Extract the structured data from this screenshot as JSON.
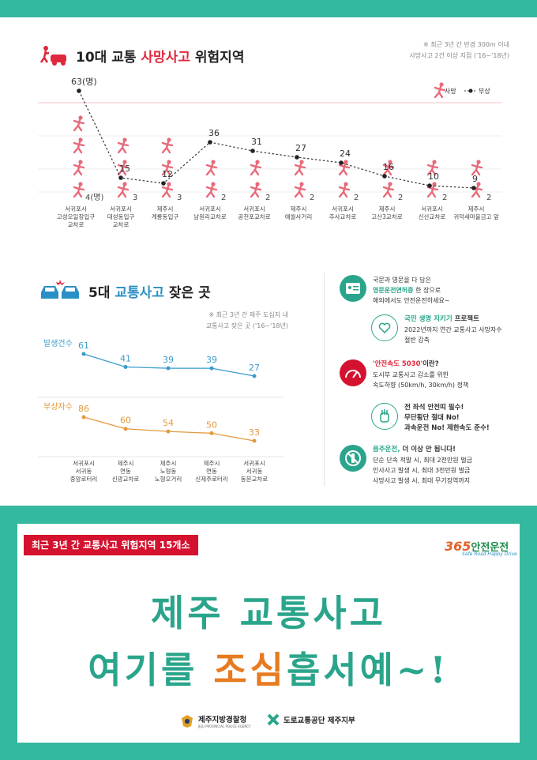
{
  "section1": {
    "title_prefix": "10대 교통 ",
    "title_highlight": "사망사고",
    "title_suffix": " 위험지역",
    "note_line1": "※ 최근 3년 간 반경 300m 이내",
    "note_line2": "사망사고 2건 이상 지점 ('16~'18년)",
    "legend_death": "사망",
    "legend_injury": "부상"
  },
  "chart_data": [
    {
      "type": "line",
      "categories": [
        [
          "서귀포시",
          "고성오일장입구",
          "교차로"
        ],
        [
          "서귀포시",
          "대성동입구",
          "교차로"
        ],
        [
          "제주시",
          "계룡동입구"
        ],
        [
          "서귀포시",
          "남원리교차로"
        ],
        [
          "서귀포시",
          "공천포교차로"
        ],
        [
          "제주시",
          "애월사거리"
        ],
        [
          "서귀포시",
          "추사교차로"
        ],
        [
          "제주시",
          "고산3교차로"
        ],
        [
          "서귀포시",
          "신산교차로"
        ],
        [
          "제주시",
          "귀덕새마을금고 앞"
        ]
      ],
      "series": [
        {
          "name": "부상",
          "values": [
            63,
            15,
            12,
            36,
            31,
            27,
            24,
            16,
            10,
            9
          ],
          "labels": [
            "63(명)",
            "15",
            "12",
            "36",
            "31",
            "27",
            "24",
            "16",
            "10",
            "9"
          ]
        },
        {
          "name": "사망",
          "values": [
            4,
            3,
            3,
            2,
            2,
            2,
            2,
            2,
            2,
            2
          ],
          "labels": [
            "4(명)",
            "3",
            "3",
            "2",
            "2",
            "2",
            "2",
            "2",
            "2",
            "2"
          ]
        }
      ],
      "ylim": [
        0,
        70
      ],
      "grid": true,
      "legend": "top-right"
    },
    {
      "type": "line",
      "categories": [
        [
          "서귀포시",
          "서귀동",
          "중앙로터리"
        ],
        [
          "제주시",
          "연동",
          "신광교차로"
        ],
        [
          "제주시",
          "노형동",
          "노형오거리"
        ],
        [
          "제주시",
          "연동",
          "신제주로터리"
        ],
        [
          "서귀포시",
          "서귀동",
          "동문교차로"
        ]
      ],
      "series": [
        {
          "name": "발생건수",
          "values": [
            61,
            41,
            39,
            39,
            27
          ],
          "color": "#3a9ccc"
        },
        {
          "name": "부상자수",
          "values": [
            86,
            60,
            54,
            50,
            33
          ],
          "color": "#e39a3c"
        }
      ]
    }
  ],
  "section2": {
    "title_prefix": "5대 ",
    "title_highlight": "교통사고",
    "title_suffix": " 잦은 곳",
    "note_line1": "※ 최근 3년 간 제주 도심지 내",
    "note_line2": "교통사고 잦은 곳 ('16~'18년)"
  },
  "tips": [
    {
      "icon": "license-card-icon",
      "line1": "국문과 영문을 다 담은",
      "line2_hl": "영문운전면허증",
      "line2_rest": " 한 장으로",
      "line3": "해외에서도 안전운전하세요~"
    },
    {
      "icon": "heart-sun-icon",
      "line1_hl": "국민 생명 지키기",
      "line1_rest": " 프로젝트",
      "line2": "2022년까지 연간 교통사고 사망자수",
      "line3": "절반 감축"
    },
    {
      "icon": "speedometer-icon",
      "line1_hl": "'안전속도 5030'",
      "line1_rest": "이란?",
      "line2": "도시부 교통사고 감소를 위한",
      "line3": "속도하향 (50km/h, 30km/h) 정책"
    },
    {
      "icon": "hand-stop-icon",
      "line1": "전 좌석 안전띠 필수!",
      "line2": "무단횡단 절대 No!",
      "line3": "과속운전 No! 제한속도 준수!"
    },
    {
      "icon": "no-drinking-icon",
      "line1_hl": "음주운전,",
      "line1_rest": " 더 이상 안 됩니다!",
      "line2": "단순 단속 적발 시, 최대 2천만원 벌금",
      "line3": "인사사고 발생 시, 최대 3천만원 벌금",
      "line4": "사망사고 발생 시, 최대 무기징역까지"
    }
  ],
  "bottom": {
    "badge": "최근 3년 간 교통사고 위험지역 15개소",
    "logo_num": "365",
    "logo_text": "안전운전",
    "logo_sub": "Safe Road Happy Drive",
    "slogan1_a": "제주 ",
    "slogan1_b": "교통사고",
    "slogan2_a": "여기를 ",
    "slogan2_b": "조심",
    "slogan2_c": "흡서예~!",
    "org1": "제주지방경찰청",
    "org1_sub": "JEJU PROVINCIAL POLICE AGENCY",
    "org2": "도로교통공단 제주지부"
  },
  "colors": {
    "teal": "#35b8a0",
    "red": "#e0283c",
    "blue": "#3a9ccc",
    "orange": "#e39a3c"
  }
}
